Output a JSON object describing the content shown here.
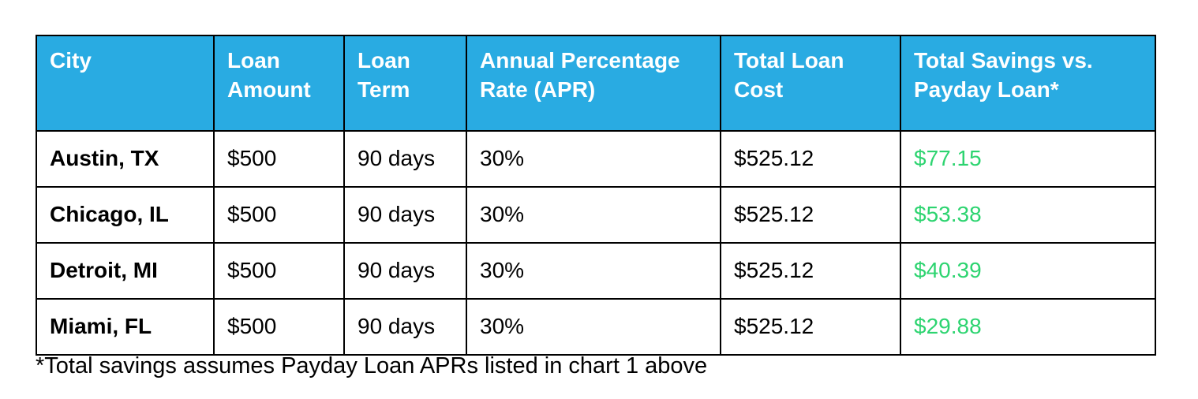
{
  "colors": {
    "header_background": "#29ABE2",
    "header_text": "#FFFFFF",
    "savings_text": "#2DD470",
    "border": "#000000",
    "body_text": "#000000",
    "page_background": "#FFFFFF"
  },
  "chart_data": {
    "type": "table",
    "columns": [
      "City",
      "Loan Amount",
      "Loan Term",
      "Annual Percentage Rate (APR)",
      "Total Loan Cost",
      "Total Savings vs. Payday Loan*"
    ],
    "rows": [
      [
        "Austin, TX",
        "$500",
        "90 days",
        "30%",
        "$525.12",
        "$77.15"
      ],
      [
        "Chicago, IL",
        "$500",
        "90 days",
        "30%",
        "$525.12",
        "$53.38"
      ],
      [
        "Detroit, MI",
        "$500",
        "90 days",
        "30%",
        "$525.12",
        "$40.39"
      ],
      [
        "Miami, FL",
        "$500",
        "90 days",
        "30%",
        "$525.12",
        "$29.88"
      ]
    ],
    "footnote": "*Total savings assumes Payday Loan APRs listed in chart 1 above"
  }
}
